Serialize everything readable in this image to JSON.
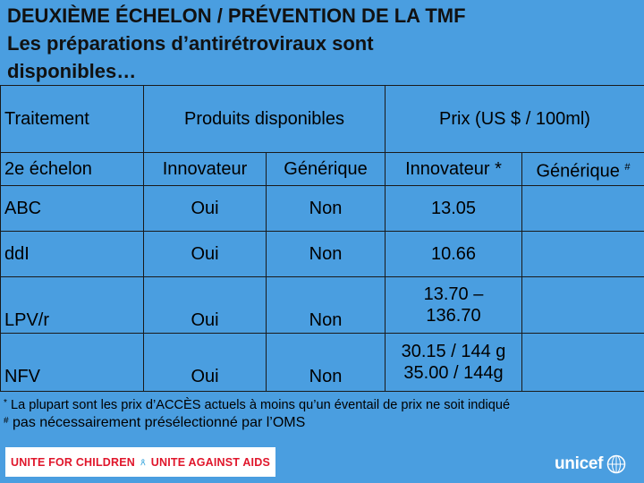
{
  "title": {
    "line1": "DEUXIÈME ÉCHELON / PRÉVENTION DE LA TMF",
    "line2": "Les préparations d’antirétroviraux sont",
    "line3": "disponibles…"
  },
  "table": {
    "header": {
      "treatment": "Traitement",
      "products": "Produits disponibles",
      "price": "Prix (US $ / 100ml)"
    },
    "subheader": {
      "level": "2e échelon",
      "innovator": "Innovateur",
      "generic": "Générique",
      "price_innovator": "Innovateur *",
      "price_generic": "Générique",
      "price_generic_mark": "#"
    },
    "rows": [
      {
        "name": "ABC",
        "innovator": "Oui",
        "generic": "Non",
        "price_innovator_1": "13.05",
        "price_innovator_2": "",
        "price_generic": ""
      },
      {
        "name": "ddI",
        "innovator": "Oui",
        "generic": "Non",
        "price_innovator_1": "10.66",
        "price_innovator_2": "",
        "price_generic": ""
      },
      {
        "name": "LPV/r",
        "innovator": "Oui",
        "generic": "Non",
        "price_innovator_1": "13.70 –",
        "price_innovator_2": "136.70",
        "price_generic": ""
      },
      {
        "name": "NFV",
        "innovator": "Oui",
        "generic": "Non",
        "price_innovator_1": "30.15 / 144 g",
        "price_innovator_2": "35.00 / 144g",
        "price_generic": ""
      }
    ]
  },
  "notes": {
    "note1_mark": "*",
    "note1": "La plupart sont les prix d’ACCÈS actuels à moins qu’un éventail de prix ne soit indiqué",
    "note2_mark": "#",
    "note2": "pas nécessairement présélectionné par l’OMS"
  },
  "banner": {
    "left": "UNITE FOR CHILDREN",
    "right": "UNITE AGAINST AIDS"
  },
  "logo": {
    "text": "unicef"
  },
  "colors": {
    "background": "#4a9ee0",
    "banner_text": "#e0162b"
  }
}
